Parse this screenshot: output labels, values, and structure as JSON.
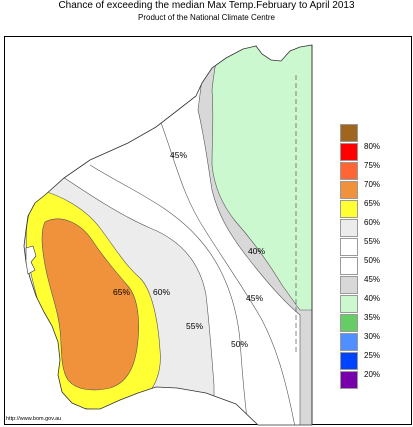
{
  "header": {
    "title": "Chance of exceeding the median Max Temp.February to April 2013",
    "subtitle": "Product of the National Climate Centre"
  },
  "map": {
    "contour_labels": [
      "45%",
      "40%",
      "45%",
      "55%",
      "50%",
      "65%",
      "60%"
    ]
  },
  "legend": {
    "items": [
      {
        "label": "80%",
        "color": "#a0661f"
      },
      {
        "label": "75%",
        "color": "#ff0000"
      },
      {
        "label": "70%",
        "color": "#ff6633"
      },
      {
        "label": "65%",
        "color": "#f0923c"
      },
      {
        "label": "60%",
        "color": "#ffff33"
      },
      {
        "label": "55%",
        "color": "#ececec"
      },
      {
        "label": "50%",
        "color": "#ffffff"
      },
      {
        "label": "45%",
        "color": "#ffffff"
      },
      {
        "label": "40%",
        "color": "#d8d8d8"
      },
      {
        "label": "35%",
        "color": "#ccf8d0"
      },
      {
        "label": "30%",
        "color": "#66cc66"
      },
      {
        "label": "25%",
        "color": "#4f8fff"
      },
      {
        "label": "20%",
        "color": "#0044ff"
      },
      {
        "label": "",
        "color": "#7700aa"
      }
    ]
  },
  "footer": {
    "credit": "http://www.bom.gov.au"
  }
}
